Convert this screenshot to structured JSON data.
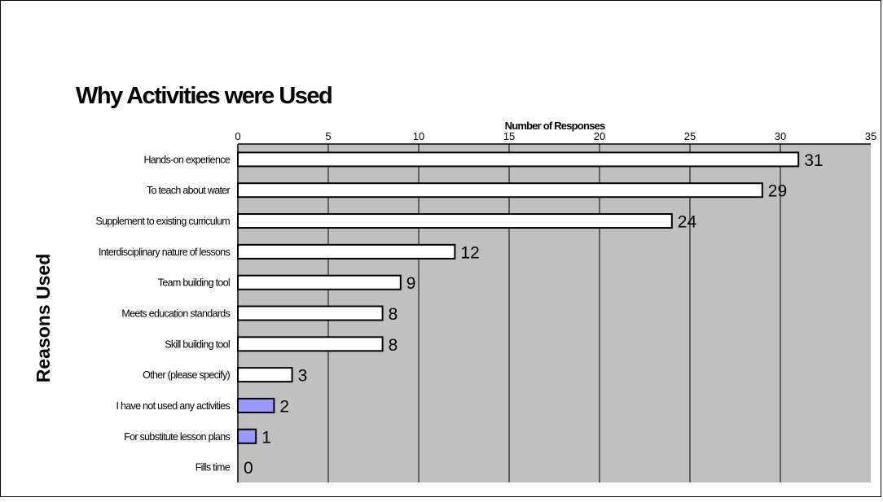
{
  "chart_data": {
    "type": "bar",
    "orientation": "horizontal",
    "title": "Why Activities were Used",
    "xlabel": "Number of Responses",
    "ylabel": "Reasons Used",
    "xlim": [
      0,
      35
    ],
    "x_ticks": [
      0,
      5,
      10,
      15,
      20,
      25,
      30,
      35
    ],
    "x_axis_position": "top",
    "grid": "vertical",
    "plot_background": "#c0c0c0",
    "bar_color_default": "#ffffff",
    "bar_color_highlight": "#9999ff",
    "categories": [
      "Hands-on experience",
      "To teach about water",
      "Supplement to existing curriculum",
      "Interdisciplinary nature of lessons",
      "Team building tool",
      "Meets education standards",
      "Skill building tool",
      "Other (please specify)",
      "I have not used any activities",
      "For substitute lesson plans",
      "Fills time"
    ],
    "values": [
      31,
      29,
      24,
      12,
      9,
      8,
      8,
      3,
      2,
      1,
      0
    ],
    "highlighted": [
      false,
      false,
      false,
      false,
      false,
      false,
      false,
      false,
      true,
      true,
      false
    ],
    "data_labels": [
      "31",
      "29",
      "24",
      "12",
      "9",
      "8",
      "8",
      "3",
      "2",
      "1",
      "0"
    ]
  }
}
